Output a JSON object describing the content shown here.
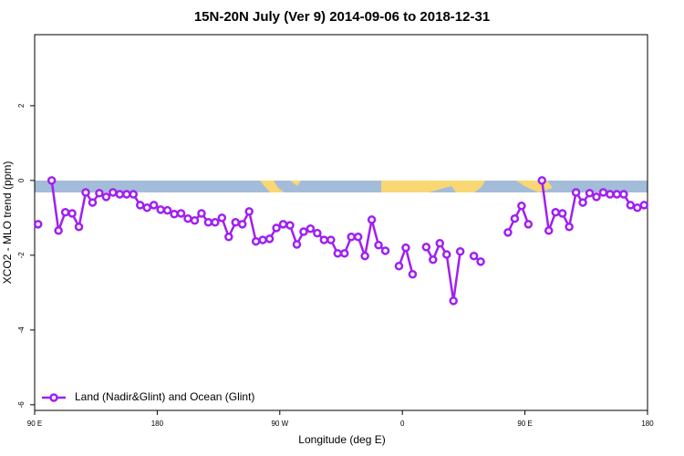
{
  "chart_data": {
    "type": "line",
    "title": "15N-20N July (Ver 9)   2014-09-06 to 2018-12-31",
    "x_label": "Longitude (deg E)",
    "y_label": "XCO2 - MLO trend (ppm)",
    "x": [
      92.5,
      97.5,
      102.5,
      107.5,
      112.5,
      117.5,
      122.5,
      127.5,
      132.5,
      137.5,
      142.5,
      147.5,
      152.5,
      157.5,
      162.5,
      167.5,
      172.5,
      177.5,
      182.5,
      187.5,
      192.5,
      197.5,
      202.5,
      207.5,
      212.5,
      217.5,
      222.5,
      227.5,
      232.5,
      237.5,
      242.5,
      247.5,
      252.5,
      257.5,
      262.5,
      267.5,
      272.5,
      277.5,
      282.5,
      287.5,
      292.5,
      297.5,
      302.5,
      307.5,
      312.5,
      317.5,
      322.5,
      327.5,
      332.5,
      337.5,
      342.5,
      347.5,
      352.5,
      357.5,
      362.5,
      367.5,
      372.5,
      377.5,
      382.5,
      387.5,
      392.5,
      397.5,
      402.5,
      407.5,
      412.5,
      417.5,
      422.5,
      427.5,
      432.5,
      437.5,
      442.5,
      447.5,
      452.5,
      457.5,
      462.5,
      467.5,
      472.5,
      477.5,
      482.5,
      487.5,
      492.5,
      497.5,
      502.5,
      507.5,
      512.5,
      517.5,
      522.5,
      527.5,
      532.5,
      537.5
    ],
    "series": [
      {
        "name": "Land (Nadir&Glint) and Ocean (Glint)",
        "color": "#a020f0",
        "values": [
          -1.17,
          null,
          0,
          -1.34,
          -0.85,
          -0.88,
          -1.24,
          -0.32,
          -0.59,
          -0.34,
          -0.44,
          -0.32,
          -0.37,
          -0.37,
          -0.37,
          -0.66,
          -0.73,
          -0.66,
          -0.78,
          -0.8,
          -0.9,
          -0.88,
          -1.02,
          -1.07,
          -0.88,
          -1.12,
          -1.12,
          -1.0,
          -1.51,
          -1.12,
          -1.17,
          -0.83,
          -1.63,
          -1.59,
          -1.56,
          -1.27,
          -1.17,
          -1.2,
          -1.71,
          -1.37,
          -1.29,
          -1.41,
          -1.59,
          -1.59,
          -1.95,
          -1.95,
          -1.51,
          -1.51,
          -2.02,
          -1.05,
          -1.73,
          -1.88,
          null,
          -2.29,
          -1.8,
          -2.51,
          null,
          -1.78,
          -2.12,
          -1.68,
          -1.98,
          -3.22,
          -1.9,
          null,
          -2.02,
          -2.17,
          null,
          null,
          null,
          -1.39,
          -1.02,
          -0.68,
          -1.17,
          null,
          0,
          -1.34,
          -0.85,
          -0.88,
          -1.24,
          -0.32,
          -0.59,
          -0.34,
          -0.44,
          -0.32,
          -0.37,
          -0.37,
          -0.37,
          -0.66,
          -0.73,
          -0.66
        ]
      }
    ],
    "xlim": [
      90,
      540
    ],
    "xticks": [
      {
        "value": 90,
        "label": "90 E"
      },
      {
        "value": 180,
        "label": "180"
      },
      {
        "value": 270,
        "label": "90 W"
      },
      {
        "value": 360,
        "label": "0"
      },
      {
        "value": 450,
        "label": "90 E"
      },
      {
        "value": 540,
        "label": "180"
      }
    ],
    "ylim": [
      -6.15,
      3.9
    ],
    "yticks": [
      -6,
      -4,
      -2,
      0,
      2
    ],
    "legend": "bottom-left"
  }
}
